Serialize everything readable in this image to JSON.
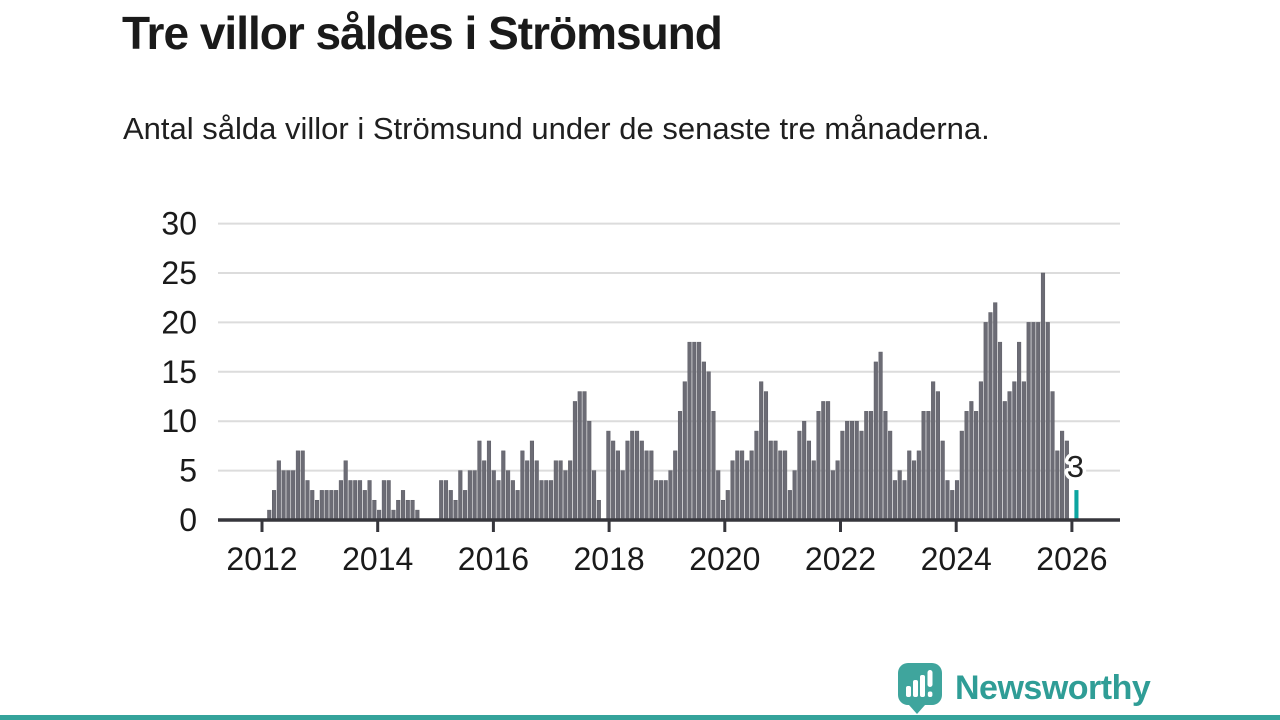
{
  "header": {
    "title": "Tre villor såldes i Strömsund",
    "subtitle": "Antal sålda villor i Strömsund under de senaste tre månaderna."
  },
  "chart_data": {
    "type": "bar",
    "title": "Tre villor såldes i Strömsund",
    "subtitle": "Antal sålda villor i Strömsund under de senaste tre månaderna.",
    "frequency": "monthly",
    "x_start": "2012",
    "x_end": "2026",
    "values": [
      0,
      1,
      3,
      6,
      5,
      5,
      5,
      7,
      7,
      4,
      3,
      2,
      3,
      3,
      3,
      3,
      4,
      6,
      4,
      4,
      4,
      3,
      4,
      2,
      1,
      4,
      4,
      1,
      2,
      3,
      2,
      2,
      1,
      0,
      0,
      0,
      0,
      4,
      4,
      3,
      2,
      5,
      3,
      5,
      5,
      8,
      6,
      8,
      5,
      4,
      7,
      5,
      4,
      3,
      7,
      6,
      8,
      6,
      4,
      4,
      4,
      6,
      6,
      5,
      6,
      12,
      13,
      13,
      10,
      5,
      2,
      0,
      9,
      8,
      7,
      5,
      8,
      9,
      9,
      8,
      7,
      7,
      4,
      4,
      4,
      5,
      7,
      11,
      14,
      18,
      18,
      18,
      16,
      15,
      11,
      5,
      2,
      3,
      6,
      7,
      7,
      6,
      7,
      9,
      14,
      13,
      8,
      8,
      7,
      7,
      3,
      5,
      9,
      10,
      8,
      6,
      11,
      12,
      12,
      5,
      6,
      9,
      10,
      10,
      10,
      9,
      11,
      11,
      16,
      17,
      11,
      9,
      4,
      5,
      4,
      7,
      6,
      7,
      11,
      11,
      14,
      13,
      8,
      4,
      3,
      4,
      9,
      11,
      12,
      11,
      14,
      20,
      21,
      22,
      18,
      12,
      13,
      14,
      18,
      14,
      20,
      20,
      20,
      25,
      20,
      13,
      7,
      9,
      8,
      0,
      3
    ],
    "highlight_last_value": 3,
    "annotation_label": "3",
    "x_ticks": [
      "2012",
      "2014",
      "2016",
      "2018",
      "2020",
      "2022",
      "2024",
      "2026"
    ],
    "y_ticks": [
      "0",
      "5",
      "10",
      "15",
      "20",
      "25",
      "30"
    ],
    "ylim": [
      0,
      30
    ],
    "grid": "horizontal",
    "legend": "none",
    "bar_color": "#6c6c75",
    "highlight_color": "#0ca5a0",
    "grid_color": "#dcdcdc",
    "axis_color": "#36363c",
    "label_color": "#1a1a1a"
  },
  "footer": {
    "brand": "Newsworthy",
    "brand_color": "#2f9d96",
    "icon": "newsworthy-chart-bubble-icon",
    "strip_color": "#35a39b"
  }
}
